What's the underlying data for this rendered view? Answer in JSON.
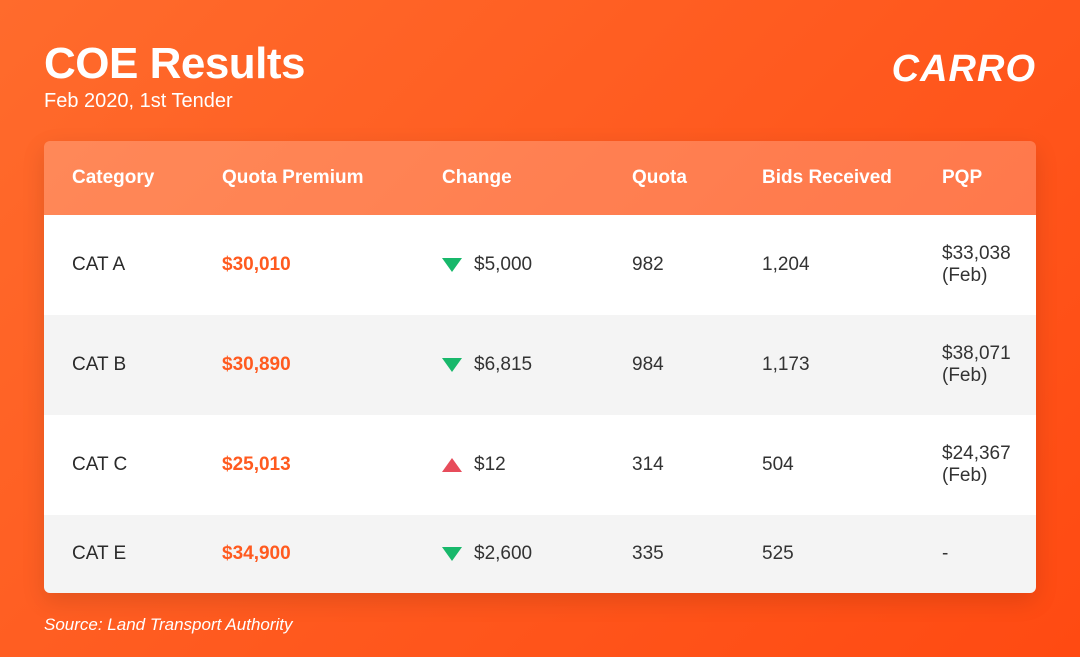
{
  "header": {
    "title": "COE Results",
    "subtitle": "Feb 2020, 1st Tender",
    "logo": "CARRO"
  },
  "colors": {
    "bg_gradient_start": "#ff6b2c",
    "bg_gradient_end": "#ff4a12",
    "header_row_bg": "rgba(255,255,255,0.22)",
    "row_even_bg": "#ffffff",
    "row_odd_bg": "#f4f4f4",
    "text_white": "#ffffff",
    "text_dark": "#333333",
    "premium_color": "#ff5a1f",
    "down_color": "#18b86b",
    "up_color": "#e74c5b"
  },
  "table": {
    "columns": [
      "Category",
      "Quota Premium",
      "Change",
      "Quota",
      "Bids Received",
      "PQP"
    ],
    "rows": [
      {
        "category": "CAT A",
        "premium": "$30,010",
        "direction": "down",
        "change": "$5,000",
        "quota": "982",
        "bids": "1,204",
        "pqp": "$33,038 (Feb)"
      },
      {
        "category": "CAT B",
        "premium": "$30,890",
        "direction": "down",
        "change": "$6,815",
        "quota": "984",
        "bids": "1,173",
        "pqp": "$38,071 (Feb)"
      },
      {
        "category": "CAT C",
        "premium": "$25,013",
        "direction": "up",
        "change": "$12",
        "quota": "314",
        "bids": "504",
        "pqp": "$24,367 (Feb)"
      },
      {
        "category": "CAT E",
        "premium": "$34,900",
        "direction": "down",
        "change": "$2,600",
        "quota": "335",
        "bids": "525",
        "pqp": "-"
      }
    ]
  },
  "source": "Source: Land Transport Authority"
}
